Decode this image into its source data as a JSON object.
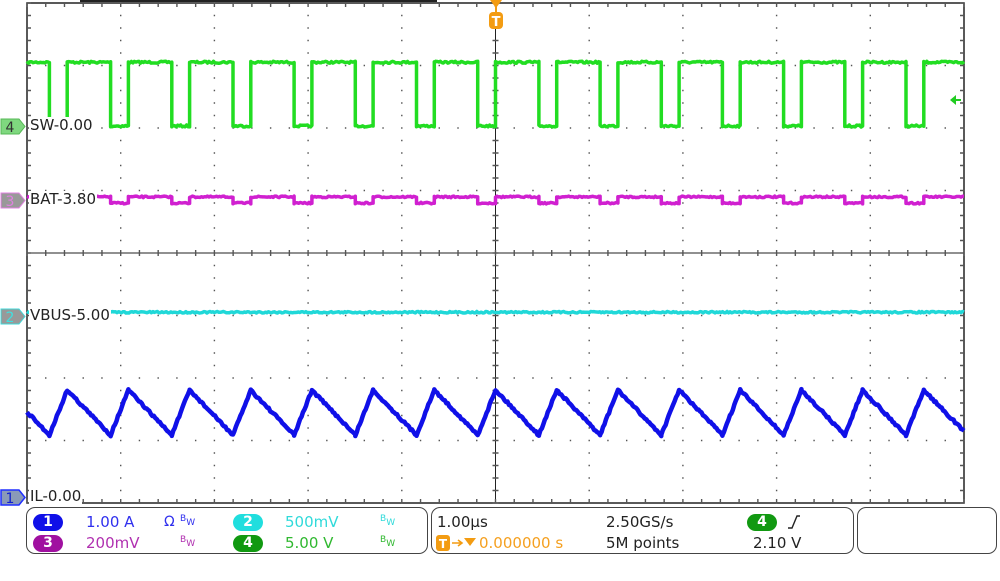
{
  "channels": [
    {
      "num": "1",
      "name": "IL",
      "label": "IL-0.00",
      "scale": "1.00 A",
      "extra": "Ω",
      "bw": "BW",
      "color": "#1010e8",
      "text_color": "#3030ee"
    },
    {
      "num": "2",
      "name": "VBUS",
      "label": "VBUS-5.00",
      "scale": "500mV",
      "bw": "BW",
      "color": "#20d8d8",
      "text_color": "#30dada"
    },
    {
      "num": "3",
      "name": "BAT",
      "label": "BAT-3.80",
      "scale": "200mV",
      "bw": "BW",
      "color": "#d020d0",
      "text_color": "#b030b0"
    },
    {
      "num": "4",
      "name": "SW",
      "label": "SW-0.00",
      "scale": "5.00 V",
      "bw": "BW",
      "color": "#22dd22",
      "text_color": "#30b830"
    }
  ],
  "horizontal": {
    "time_per_div": "1.00µs",
    "trigger_position": "0.000000 s",
    "sample_rate": "2.50GS/s",
    "record_length": "5M points"
  },
  "trigger": {
    "marker": "T",
    "source": "4",
    "slope": "rising-edge-icon",
    "level": "2.10 V",
    "color": "#f39c12"
  },
  "chart_data": {
    "type": "line",
    "xlabel": "",
    "ylabel": "",
    "x_unit": "µs",
    "xlim": [
      -5,
      5
    ],
    "grid": true,
    "divisions": {
      "horizontal": 10,
      "vertical": 8
    },
    "series": [
      {
        "channel": "4",
        "name": "SW",
        "unit": "V",
        "volts_per_div": 5.0,
        "offset": 0.0,
        "high": 5.1,
        "low": 0.0,
        "low_intervals": [
          [
            -4.761,
            -4.571
          ],
          [
            -4.108,
            -3.918
          ],
          [
            -3.455,
            -3.265
          ],
          [
            -2.802,
            -2.612
          ],
          [
            -2.149,
            -1.959
          ],
          [
            -1.496,
            -1.306
          ],
          [
            -0.843,
            -0.653
          ],
          [
            -0.19,
            0
          ],
          [
            0.463,
            0.653
          ],
          [
            1.116,
            1.306
          ],
          [
            1.769,
            1.959
          ],
          [
            2.422,
            2.612
          ],
          [
            3.075,
            3.265
          ],
          [
            3.728,
            3.918
          ],
          [
            4.381,
            4.571
          ]
        ]
      },
      {
        "channel": "3",
        "name": "BAT",
        "unit": "V",
        "volts_per_div": 0.2,
        "offset": 3.8,
        "high": 3.81,
        "low": 3.79,
        "low_intervals": [
          [
            -0.843,
            -0.653
          ],
          [
            -0.19,
            0
          ],
          [
            0.463,
            0.653
          ],
          [
            1.116,
            1.306
          ],
          [
            1.769,
            1.959
          ],
          [
            2.422,
            2.612
          ],
          [
            3.075,
            3.265
          ],
          [
            3.728,
            3.918
          ],
          [
            4.381,
            4.571
          ],
          [
            -4.108,
            -3.918
          ],
          [
            -3.455,
            -3.265
          ],
          [
            -2.802,
            -2.612
          ],
          [
            -2.149,
            -1.959
          ],
          [
            -1.496,
            -1.306
          ]
        ]
      },
      {
        "channel": "2",
        "name": "VBUS",
        "unit": "V",
        "volts_per_div": 0.5,
        "offset": 5.0,
        "points": [
          [
            -5,
            5.03
          ],
          [
            5,
            5.03
          ]
        ]
      },
      {
        "channel": "1",
        "name": "IL",
        "unit": "A",
        "amps_per_div": 1.0,
        "offset": 0.0,
        "points": [
          [
            -5,
            1.36
          ],
          [
            -4.761,
            0.99
          ],
          [
            -4.571,
            1.71
          ],
          [
            -4.108,
            0.99
          ],
          [
            -3.918,
            1.71
          ],
          [
            -3.455,
            0.99
          ],
          [
            -3.265,
            1.71
          ],
          [
            -2.802,
            0.99
          ],
          [
            -2.612,
            1.71
          ],
          [
            -2.149,
            0.99
          ],
          [
            -1.959,
            1.71
          ],
          [
            -1.496,
            0.99
          ],
          [
            -1.306,
            1.71
          ],
          [
            -0.843,
            0.99
          ],
          [
            -0.653,
            1.71
          ],
          [
            -0.19,
            0.99
          ],
          [
            0,
            1.71
          ],
          [
            0.463,
            0.99
          ],
          [
            0.653,
            1.71
          ],
          [
            1.116,
            0.99
          ],
          [
            1.306,
            1.71
          ],
          [
            1.769,
            0.99
          ],
          [
            1.959,
            1.71
          ],
          [
            2.422,
            0.99
          ],
          [
            2.612,
            1.71
          ],
          [
            3.075,
            0.99
          ],
          [
            3.265,
            1.71
          ],
          [
            3.728,
            0.99
          ],
          [
            3.918,
            1.71
          ],
          [
            4.381,
            0.99
          ],
          [
            4.571,
            1.71
          ],
          [
            5,
            1.05
          ]
        ]
      }
    ]
  }
}
